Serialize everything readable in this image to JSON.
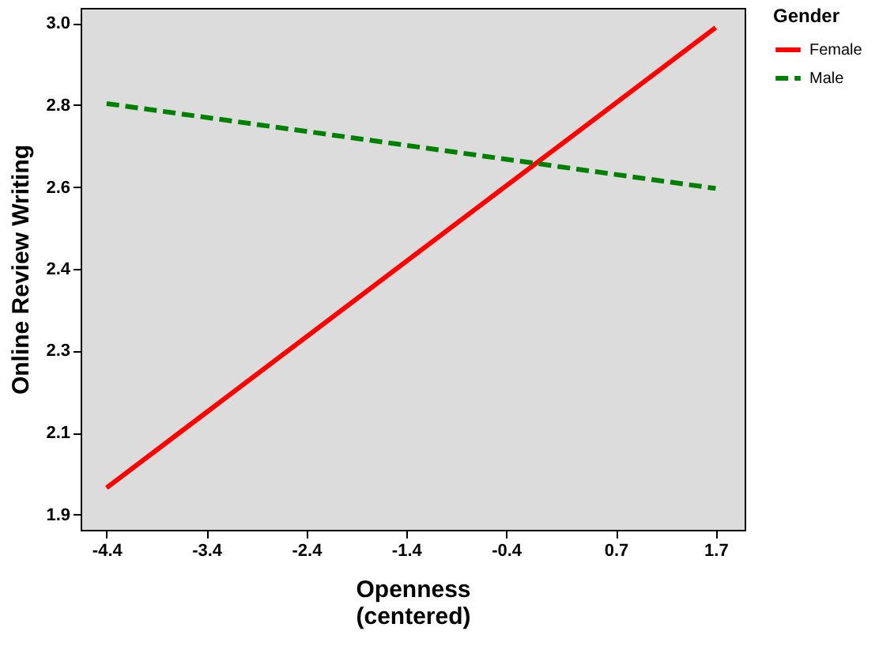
{
  "chart_data": {
    "type": "line",
    "xlabel": "Openness\n(centered)",
    "ylabel": "Online Review Writing",
    "legend_title": "Gender",
    "legend": "top right",
    "grid": false,
    "marker": "none",
    "x": [
      -4.4,
      1.7
    ],
    "series": [
      {
        "name": "Female",
        "color": "#ff0000",
        "line_style": "solid",
        "values": [
          1.96,
          2.99
        ]
      },
      {
        "name": "Male",
        "color": "#008000",
        "line_style": "dashed",
        "values": [
          2.82,
          2.63
        ]
      }
    ],
    "xlim": [
      -4.66,
      1.99
    ],
    "ylim": [
      1.866,
      3.034
    ],
    "xticks": [
      -4.4,
      -3.4,
      -2.4,
      -1.4,
      -0.4,
      0.7,
      1.7
    ],
    "yticks": [
      {
        "value": 1.9,
        "label": "1.9"
      },
      {
        "value": 2.083,
        "label": "2.1"
      },
      {
        "value": 2.267,
        "label": "2.3"
      },
      {
        "value": 2.45,
        "label": "2.4"
      },
      {
        "value": 2.633,
        "label": "2.6"
      },
      {
        "value": 2.817,
        "label": "2.8"
      },
      {
        "value": 3.0,
        "label": "3.0"
      }
    ]
  }
}
